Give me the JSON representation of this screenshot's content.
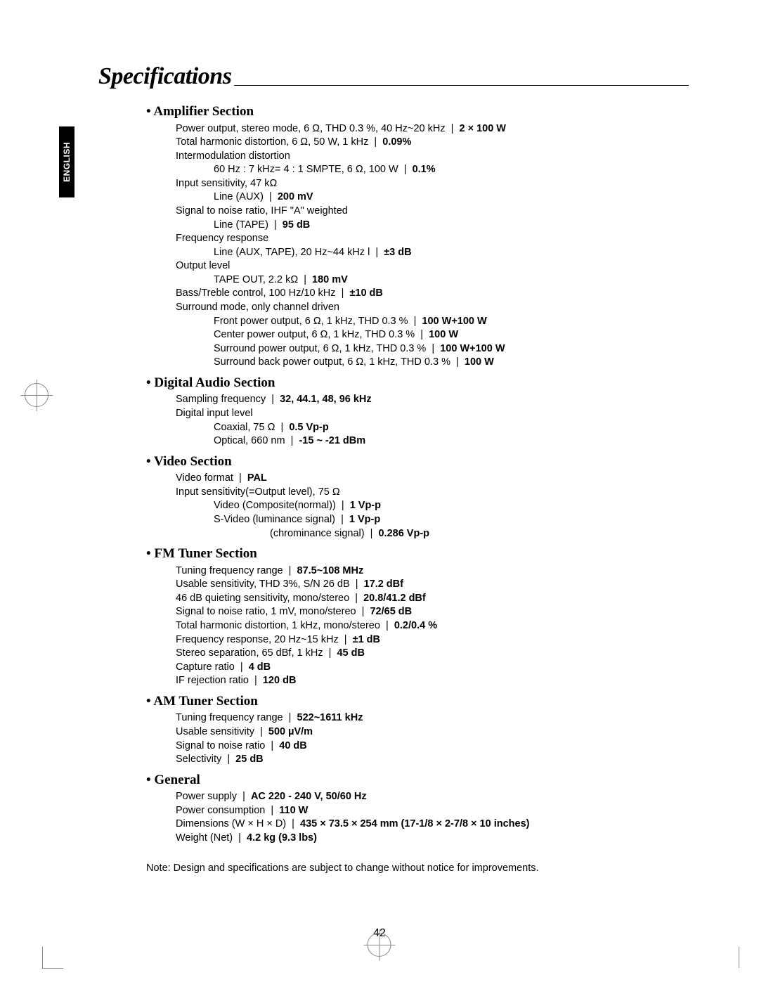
{
  "page": {
    "title": "Specifications",
    "language_badge": "ENGLISH",
    "page_number": "42",
    "note": "Note: Design and specifications are subject to change without notice for improvements."
  },
  "sections": {
    "amplifier": {
      "header": "• Amplifier Section",
      "lines": [
        {
          "indent": 0,
          "label": "Power output, stereo mode, 6 Ω, THD 0.3 %, 40 Hz~20 kHz",
          "value": "2 × 100 W"
        },
        {
          "indent": 0,
          "label": "Total harmonic distortion, 6 Ω, 50 W, 1 kHz",
          "value": "0.09%"
        },
        {
          "indent": 0,
          "label": "Intermodulation distortion",
          "value": ""
        },
        {
          "indent": 1,
          "label": "60 Hz : 7 kHz= 4 : 1 SMPTE, 6 Ω, 100 W",
          "value": "0.1%"
        },
        {
          "indent": 0,
          "label": "Input sensitivity, 47 kΩ",
          "value": ""
        },
        {
          "indent": 1,
          "label": "Line (AUX)",
          "value": "200 mV"
        },
        {
          "indent": 0,
          "label": "Signal to noise ratio, IHF \"A\" weighted",
          "value": ""
        },
        {
          "indent": 1,
          "label": "Line (TAPE)",
          "value": "95 dB"
        },
        {
          "indent": 0,
          "label": "Frequency response",
          "value": ""
        },
        {
          "indent": 1,
          "label": "Line (AUX, TAPE), 20 Hz~44 kHz l",
          "value": "±3 dB"
        },
        {
          "indent": 0,
          "label": "Output level",
          "value": ""
        },
        {
          "indent": 1,
          "label": "TAPE OUT, 2.2 kΩ",
          "value": "180 mV"
        },
        {
          "indent": 0,
          "label": "Bass/Treble control, 100 Hz/10 kHz",
          "value": "±10 dB"
        },
        {
          "indent": 0,
          "label": "Surround mode, only channel driven",
          "value": ""
        },
        {
          "indent": 1,
          "label": "Front power output, 6 Ω, 1 kHz, THD 0.3 %",
          "value": "100 W+100 W"
        },
        {
          "indent": 1,
          "label": "Center power output, 6 Ω, 1 kHz, THD 0.3 %",
          "value": "100 W"
        },
        {
          "indent": 1,
          "label": "Surround power output, 6 Ω, 1 kHz, THD 0.3 %",
          "value": "100 W+100 W"
        },
        {
          "indent": 1,
          "label": "Surround back power output, 6 Ω, 1 kHz, THD 0.3 %",
          "value": "100 W"
        }
      ]
    },
    "digital": {
      "header": "• Digital Audio Section",
      "lines": [
        {
          "indent": 0,
          "label": "Sampling frequency",
          "value": "32, 44.1, 48, 96 kHz"
        },
        {
          "indent": 0,
          "label": "Digital input level",
          "value": ""
        },
        {
          "indent": 1,
          "label": "Coaxial, 75 Ω",
          "value": "0.5 Vp-p"
        },
        {
          "indent": 1,
          "label": "Optical, 660 nm",
          "value": "-15 ~ -21 dBm"
        }
      ]
    },
    "video": {
      "header": "• Video Section",
      "lines": [
        {
          "indent": 0,
          "label": "Video format",
          "value": "PAL"
        },
        {
          "indent": 0,
          "label": "Input sensitivity(=Output level), 75 Ω",
          "value": ""
        },
        {
          "indent": 1,
          "label": "Video (Composite(normal))",
          "value": "1 Vp-p"
        },
        {
          "indent": 1,
          "label": "S-Video (luminance signal)",
          "value": "1 Vp-p"
        },
        {
          "indent": 1,
          "label": "(chrominance signal)",
          "value": "0.286 Vp-p",
          "extra_indent": true
        }
      ]
    },
    "fm": {
      "header": "• FM Tuner Section",
      "lines": [
        {
          "indent": 0,
          "label": "Tuning frequency range",
          "value": "87.5~108 MHz"
        },
        {
          "indent": 0,
          "label": "Usable sensitivity, THD 3%, S/N 26 dB",
          "value": "17.2 dBf"
        },
        {
          "indent": 0,
          "label": "46 dB quieting sensitivity, mono/stereo",
          "value": "20.8/41.2 dBf"
        },
        {
          "indent": 0,
          "label": "Signal to noise ratio, 1 mV, mono/stereo",
          "value": "72/65 dB"
        },
        {
          "indent": 0,
          "label": "Total harmonic distortion, 1 kHz, mono/stereo",
          "value": "0.2/0.4 %"
        },
        {
          "indent": 0,
          "label": "Frequency response, 20 Hz~15 kHz",
          "value": "±1 dB"
        },
        {
          "indent": 0,
          "label": "Stereo separation, 65 dBf, 1 kHz",
          "value": "45 dB"
        },
        {
          "indent": 0,
          "label": "Capture ratio",
          "value": "4 dB"
        },
        {
          "indent": 0,
          "label": "IF rejection ratio",
          "value": "120 dB"
        }
      ]
    },
    "am": {
      "header": "• AM Tuner Section",
      "lines": [
        {
          "indent": 0,
          "label": "Tuning frequency range",
          "value": "522~1611 kHz"
        },
        {
          "indent": 0,
          "label": "Usable sensitivity",
          "value": "500 µV/m"
        },
        {
          "indent": 0,
          "label": "Signal to noise ratio",
          "value": "40 dB"
        },
        {
          "indent": 0,
          "label": "Selectivity",
          "value": "25 dB"
        }
      ]
    },
    "general": {
      "header": "• General",
      "lines": [
        {
          "indent": 0,
          "label": "Power supply",
          "value": "AC 220 - 240 V, 50/60 Hz"
        },
        {
          "indent": 0,
          "label": "Power consumption",
          "value": "110 W"
        },
        {
          "indent": 0,
          "label": "Dimensions (W × H × D)",
          "value": "435 × 73.5 × 254 mm (17-1/8 × 2-7/8 × 10 inches)"
        },
        {
          "indent": 0,
          "label": "Weight (Net)",
          "value": "4.2 kg (9.3 lbs)"
        }
      ]
    }
  },
  "style": {
    "page_bg": "#ffffff",
    "text_color": "#000000",
    "title_font": "Times New Roman",
    "title_fontsize": 34,
    "header_fontsize": 19,
    "body_fontsize": 14.5,
    "badge_bg": "#000000",
    "badge_fg": "#ffffff"
  }
}
